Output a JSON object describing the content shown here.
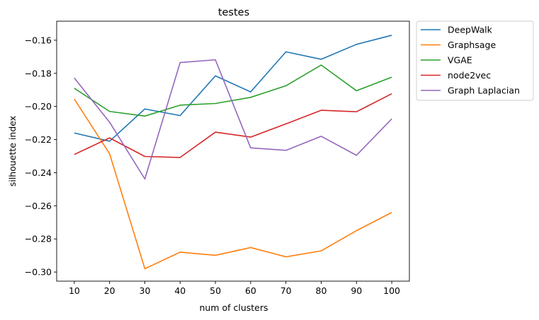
{
  "chart_data": {
    "type": "line",
    "title": "testes",
    "xlabel": "num of clusters",
    "ylabel": "silhouette index",
    "x": [
      10,
      20,
      30,
      40,
      50,
      60,
      70,
      80,
      90,
      100
    ],
    "xlim": [
      5,
      105
    ],
    "ylim": [
      -0.3055,
      -0.1485
    ],
    "yticks": [
      -0.3,
      -0.28,
      -0.26,
      -0.24,
      -0.22,
      -0.2,
      -0.18,
      -0.16
    ],
    "ytick_labels": [
      "−0.30",
      "−0.28",
      "−0.26",
      "−0.24",
      "−0.22",
      "−0.20",
      "−0.18",
      "−0.16"
    ],
    "xtick_labels": [
      "10",
      "20",
      "30",
      "40",
      "50",
      "60",
      "70",
      "80",
      "90",
      "100"
    ],
    "grid": false,
    "legend_position": "outside-top-right",
    "series": [
      {
        "name": "DeepWalk",
        "color": "#1f77b4",
        "values": [
          -0.216,
          -0.221,
          -0.2015,
          -0.2055,
          -0.1815,
          -0.1912,
          -0.167,
          -0.1715,
          -0.1625,
          -0.157
        ]
      },
      {
        "name": "Graphsage",
        "color": "#ff7f0e",
        "values": [
          -0.1955,
          -0.2285,
          -0.298,
          -0.288,
          -0.2899,
          -0.2852,
          -0.2908,
          -0.2872,
          -0.275,
          -0.264
        ]
      },
      {
        "name": "VGAE",
        "color": "#2ca02c",
        "values": [
          -0.189,
          -0.203,
          -0.2058,
          -0.1992,
          -0.1982,
          -0.1945,
          -0.1875,
          -0.175,
          -0.1905,
          -0.1823
        ]
      },
      {
        "name": "node2vec",
        "color": "#d62728",
        "values": [
          -0.229,
          -0.219,
          -0.2302,
          -0.2308,
          -0.2155,
          -0.2185,
          -0.2105,
          -0.2023,
          -0.2032,
          -0.1923
        ]
      },
      {
        "name": "Graph Laplacian",
        "color": "#9467bd",
        "values": [
          -0.1828,
          -0.2095,
          -0.2438,
          -0.1735,
          -0.1718,
          -0.225,
          -0.2265,
          -0.218,
          -0.2295,
          -0.2075
        ]
      }
    ]
  }
}
